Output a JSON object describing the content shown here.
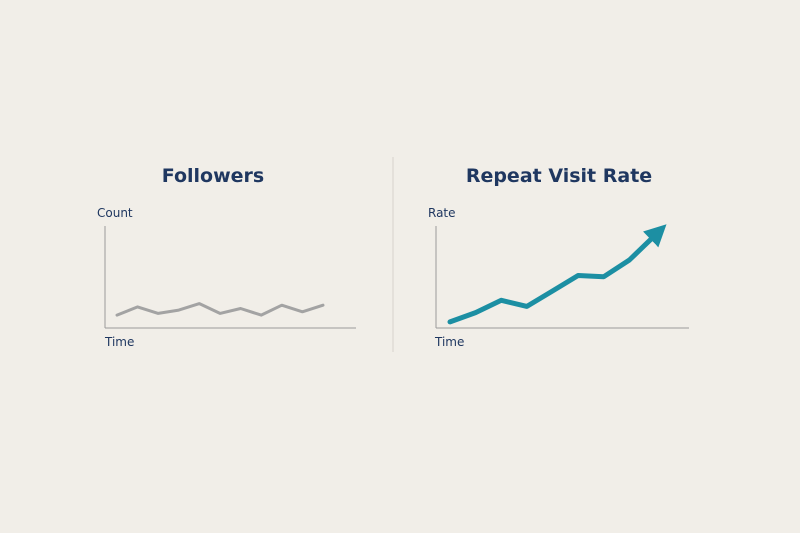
{
  "chart_data": [
    {
      "type": "line",
      "title": "Followers",
      "ylabel": "Count",
      "xlabel": "Time",
      "x": [
        0,
        1,
        2,
        3,
        4,
        5,
        6,
        7,
        8,
        9,
        10
      ],
      "values": [
        0.3,
        0.55,
        0.35,
        0.45,
        0.65,
        0.35,
        0.5,
        0.3,
        0.6,
        0.4,
        0.6
      ],
      "ylim": [
        0,
        3
      ],
      "grid": false,
      "colors": {
        "line": "#a3a3a3",
        "axis": "#9a9a9a"
      }
    },
    {
      "type": "line",
      "title": "Repeat Visit Rate",
      "ylabel": "Rate",
      "xlabel": "Time",
      "x": [
        0,
        1,
        2,
        3,
        4,
        5,
        6,
        7,
        8
      ],
      "values": [
        0.05,
        0.2,
        0.4,
        0.3,
        0.55,
        0.8,
        0.78,
        1.05,
        1.45
      ],
      "ylim": [
        0,
        1.6
      ],
      "grid": false,
      "arrow_end": true,
      "colors": {
        "line": "#1c8fa3",
        "axis": "#9a9a9a"
      }
    }
  ],
  "divider": {
    "color": "#d6d2cb"
  },
  "title_color": "#1f3760"
}
